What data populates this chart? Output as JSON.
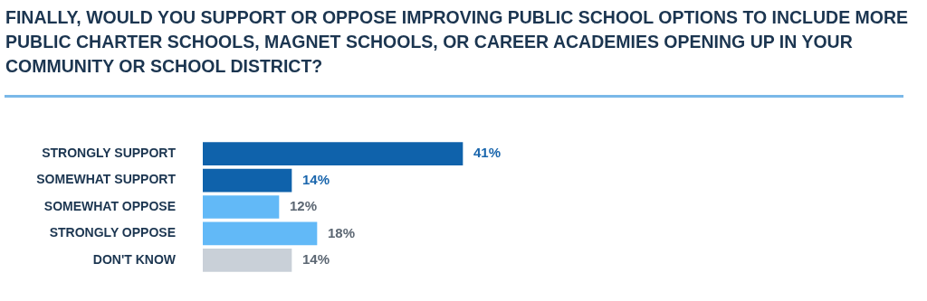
{
  "chart_data": {
    "type": "bar",
    "orientation": "horizontal",
    "title": "FINALLY, WOULD YOU SUPPORT OR OPPOSE IMPROVING PUBLIC SCHOOL OPTIONS TO INCLUDE MORE PUBLIC CHARTER SCHOOLS, MAGNET SCHOOLS, OR CAREER ACADEMIES OPENING UP IN YOUR COMMUNITY OR SCHOOL DISTRICT?",
    "categories": [
      "STRONGLY SUPPORT",
      "SOMEWHAT SUPPORT",
      "SOMEWHAT OPPOSE",
      "STRONGLY OPPOSE",
      "DON'T KNOW"
    ],
    "values": [
      41,
      14,
      12,
      18,
      14
    ],
    "colors": [
      "#0f62ab",
      "#0f62ab",
      "#62b9f7",
      "#62b9f7",
      "#c9d0d8"
    ],
    "value_labels": [
      "41%",
      "14%",
      "12%",
      "18%",
      "14%"
    ]
  }
}
